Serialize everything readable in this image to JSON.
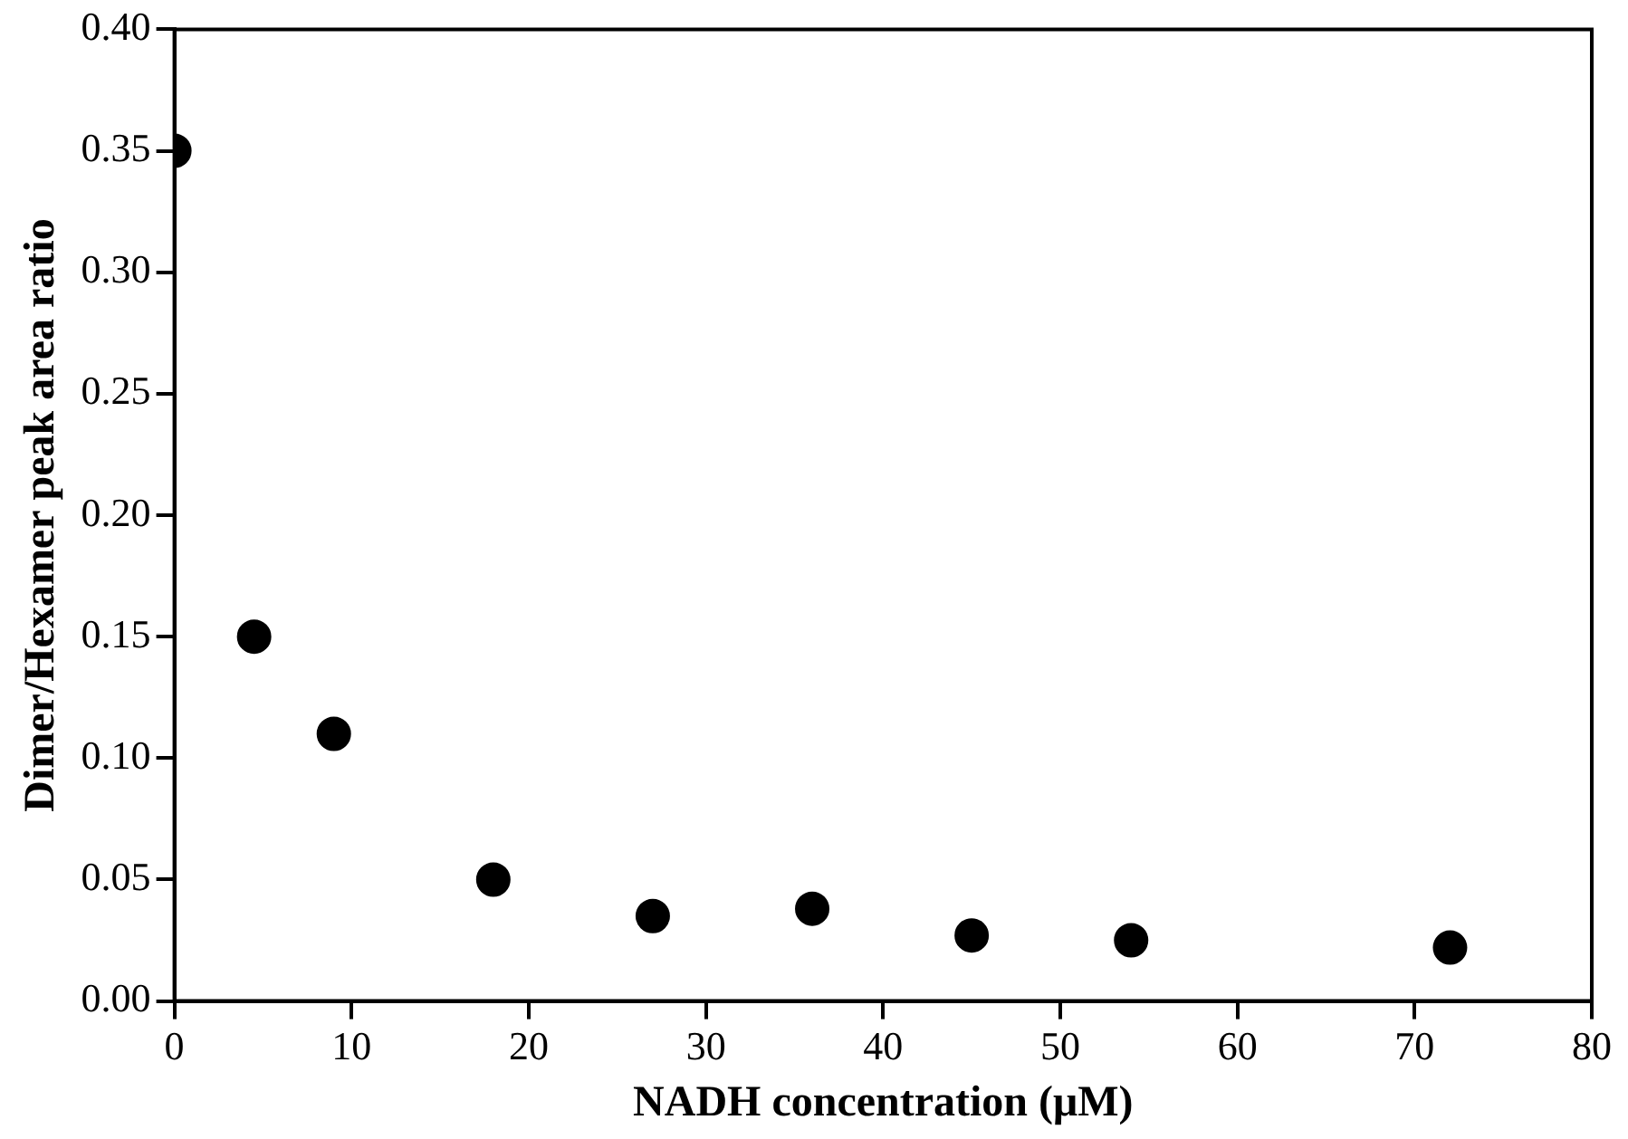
{
  "chart_data": {
    "type": "scatter",
    "xlabel": "NADH concentration (μM)",
    "ylabel": "Dimer/Hexamer peak area ratio",
    "x": [
      0,
      4.5,
      9,
      18,
      27,
      36,
      45,
      54,
      72
    ],
    "series": [
      {
        "color": "#000000",
        "values": [
          0.35,
          0.15,
          0.11,
          0.05,
          0.035,
          0.038,
          0.027,
          0.025,
          0.022
        ]
      }
    ],
    "xlim": [
      0,
      80
    ],
    "xticks": [
      0,
      10,
      20,
      30,
      40,
      50,
      60,
      70,
      80
    ],
    "ylim": [
      0,
      0.4
    ],
    "yticks": [
      {
        "value": 0,
        "label": "0.00"
      },
      {
        "value": 0.05,
        "label": "0.05"
      },
      {
        "value": 0.1,
        "label": "0.10"
      },
      {
        "value": 0.15,
        "label": "0.15"
      },
      {
        "value": 0.2,
        "label": "0.20"
      },
      {
        "value": 0.25,
        "label": "0.25"
      },
      {
        "value": 0.3,
        "label": "0.30"
      },
      {
        "value": 0.35,
        "label": "0.35"
      },
      {
        "value": 0.4,
        "label": "0.40"
      }
    ],
    "grid": false,
    "legend": false,
    "marker": "circle"
  }
}
